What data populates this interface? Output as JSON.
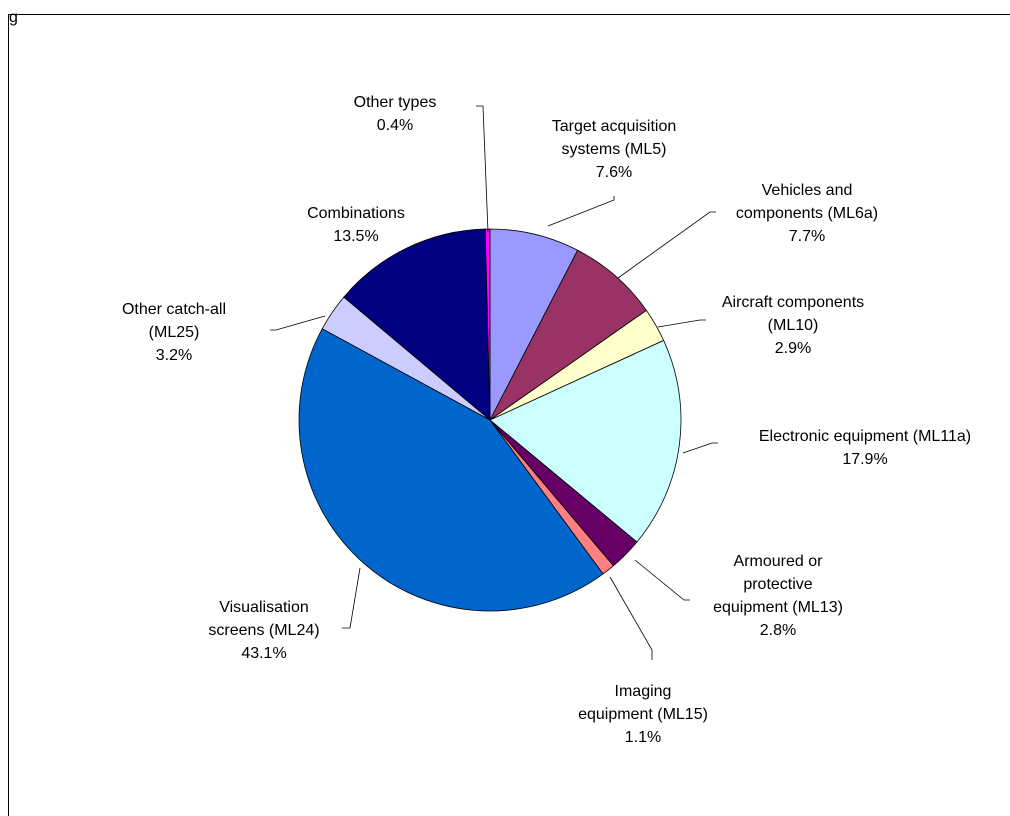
{
  "header": {
    "corner_text": "g"
  },
  "chart_data": {
    "type": "pie",
    "title": "",
    "slices": [
      {
        "label": "Target acquisition systems (ML5)",
        "lines": [
          "Target acquisition",
          "systems (ML5)"
        ],
        "value": 7.6,
        "pct_label": "7.6%",
        "color": "#9999ff"
      },
      {
        "label": "Vehicles and components (ML6a)",
        "lines": [
          "Vehicles and",
          "components (ML6a)"
        ],
        "value": 7.7,
        "pct_label": "7.7%",
        "color": "#993366"
      },
      {
        "label": "Aircraft components (ML10)",
        "lines": [
          "Aircraft components",
          "(ML10)"
        ],
        "value": 2.9,
        "pct_label": "2.9%",
        "color": "#ffffcc"
      },
      {
        "label": "Electronic equipment (ML11a)",
        "lines": [
          "Electronic equipment (ML11a)"
        ],
        "value": 17.9,
        "pct_label": "17.9%",
        "color": "#ccffff"
      },
      {
        "label": "Armoured or protective equipment (ML13)",
        "lines": [
          "Armoured or",
          "protective",
          "equipment (ML13)"
        ],
        "value": 2.8,
        "pct_label": "2.8%",
        "color": "#660066"
      },
      {
        "label": "Imaging equipment (ML15)",
        "lines": [
          "Imaging",
          "equipment (ML15)"
        ],
        "value": 1.1,
        "pct_label": "1.1%",
        "color": "#ff8080"
      },
      {
        "label": "Visualisation screens (ML24)",
        "lines": [
          "Visualisation",
          "screens (ML24)"
        ],
        "value": 43.1,
        "pct_label": "43.1%",
        "color": "#0066cc"
      },
      {
        "label": "Other catch-all (ML25)",
        "lines": [
          "Other catch-all",
          "(ML25)"
        ],
        "value": 3.2,
        "pct_label": "3.2%",
        "color": "#ccccff"
      },
      {
        "label": "Combinations",
        "lines": [
          "Combinations"
        ],
        "value": 13.5,
        "pct_label": "13.5%",
        "color": "#000080"
      },
      {
        "label": "Other types",
        "lines": [
          "Other types"
        ],
        "value": 0.4,
        "pct_label": "0.4%",
        "color": "#ff00ff"
      }
    ]
  }
}
